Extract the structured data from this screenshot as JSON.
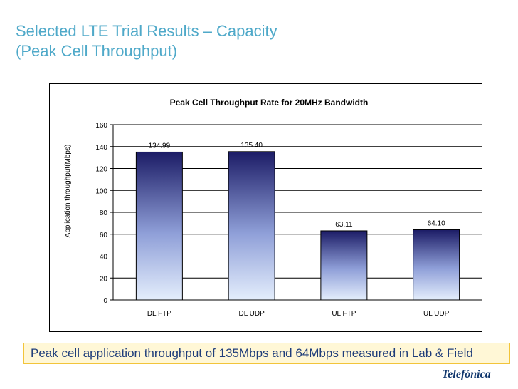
{
  "slide": {
    "title_line1": "Selected LTE Trial Results – Capacity",
    "title_line2": "(Peak Cell Throughput)",
    "footer_note": "Peak cell application throughput of 135Mbps and 64Mbps measured in Lab & Field",
    "logo_text": "Telefónica"
  },
  "chart_data": {
    "type": "bar",
    "title": "Peak Cell Throughput Rate for 20MHz Bandwidth",
    "xlabel": "",
    "ylabel": "Application throughput(Mbps)",
    "categories": [
      "DL FTP",
      "DL UDP",
      "UL FTP",
      "UL UDP"
    ],
    "values": [
      134.99,
      135.4,
      63.11,
      64.1
    ],
    "data_labels": [
      "134.99",
      "135.40",
      "63.11",
      "64.10"
    ],
    "ylim": [
      0,
      160
    ],
    "yticks": [
      0,
      20,
      40,
      60,
      80,
      100,
      120,
      140,
      160
    ],
    "grid": true,
    "legend": "none",
    "bar_gradient": [
      "#1c1c66",
      "#e4eefc"
    ]
  },
  "colors": {
    "title": "#4fa9c9",
    "footer_text": "#1f3d7a",
    "footer_border": "#f2c43a",
    "footer_fill": "#fff7d6",
    "logo": "#12386e"
  }
}
